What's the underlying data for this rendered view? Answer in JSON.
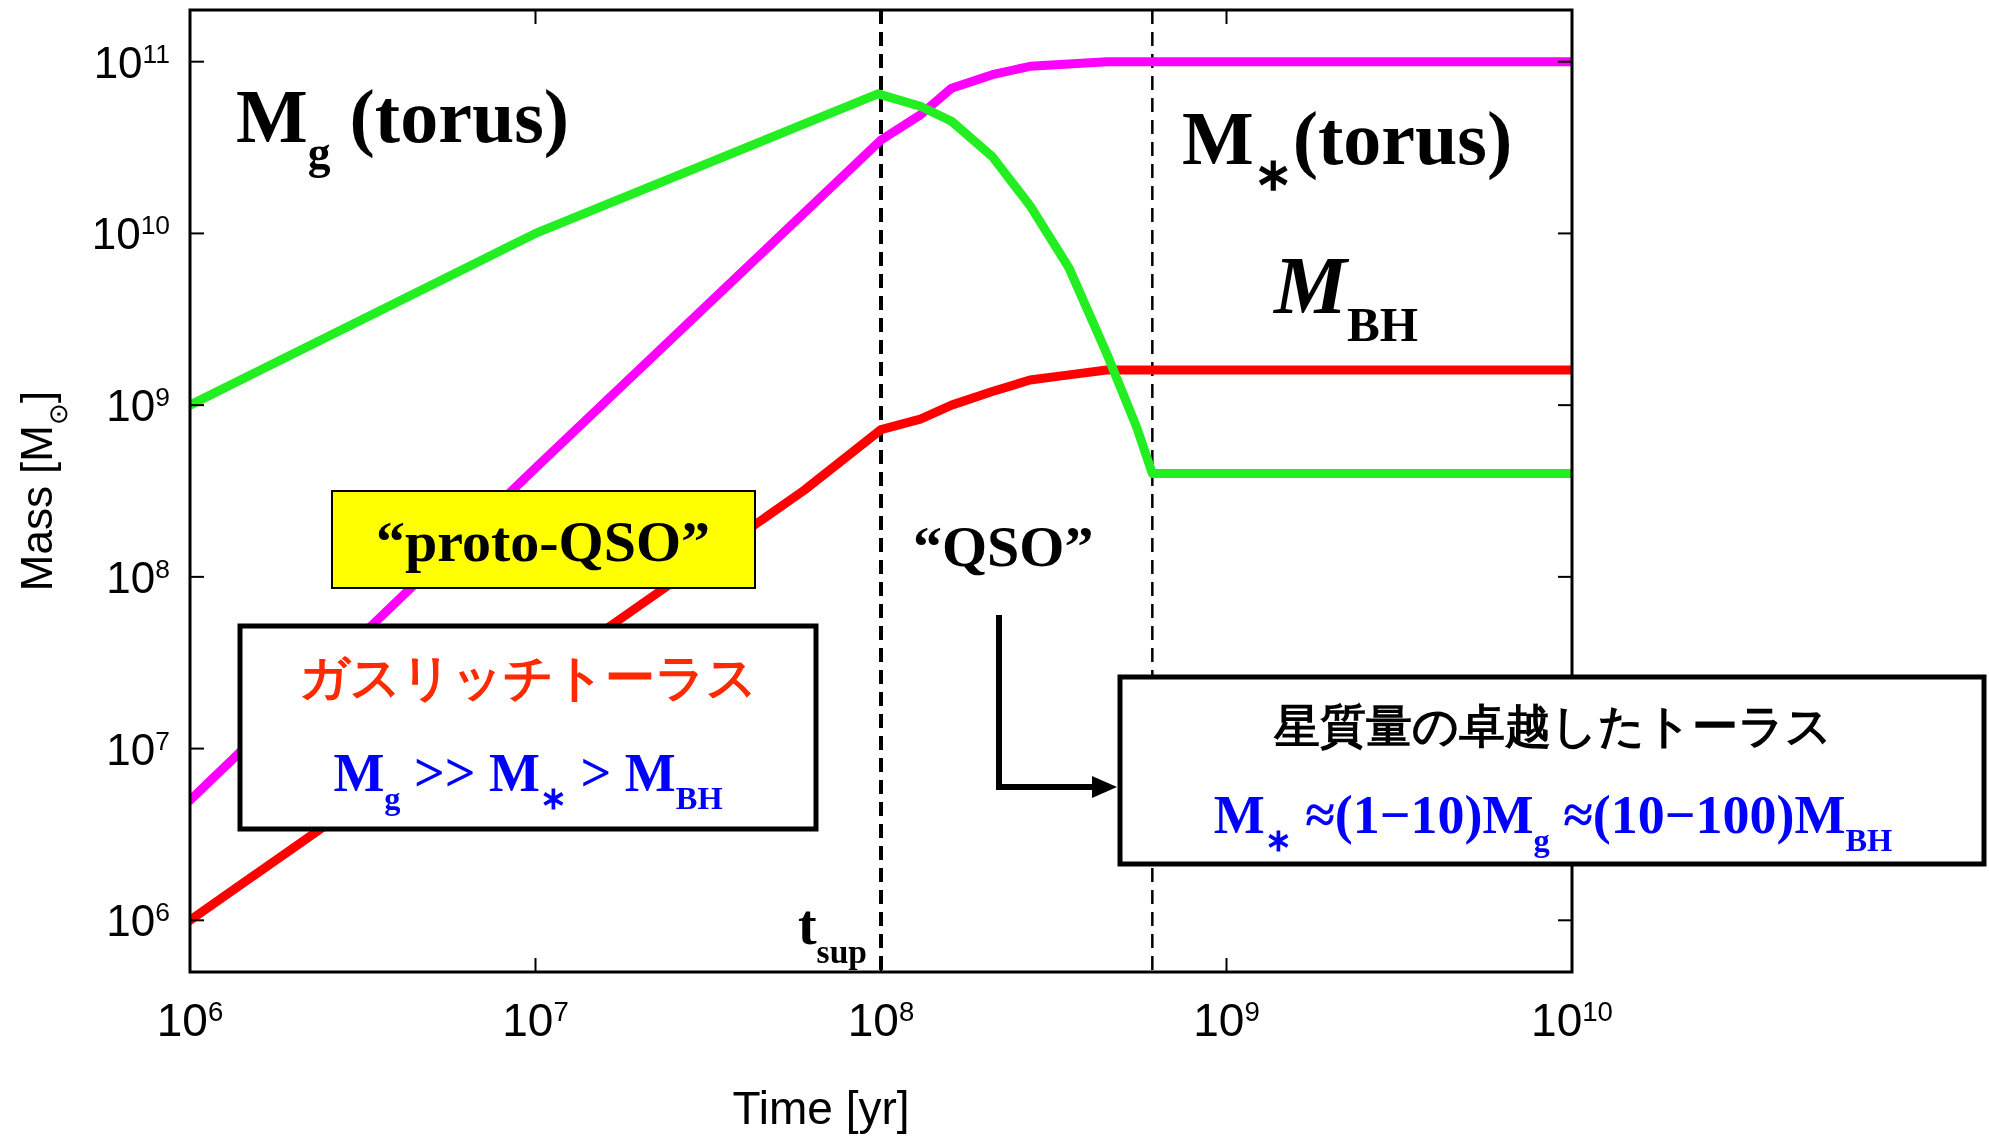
{
  "chart_data": {
    "type": "line",
    "xlabel": "Time [yr]",
    "ylabel": "Mass [M$_{⊙}$]",
    "log": "xy",
    "grid": false,
    "marker": "none",
    "line_style": "solid",
    "xlim": [
      1000000,
      10000000000
    ],
    "ylim": [
      500000,
      200000000000
    ],
    "xticks": [
      {
        "value": 1000000,
        "label": "10$^{6}$"
      },
      {
        "value": 10000000,
        "label": "10$^{7}$"
      },
      {
        "value": 100000000,
        "label": "10$^{8}$"
      },
      {
        "value": 1000000000,
        "label": "10$^{9}$"
      },
      {
        "value": 10000000000,
        "label": "10$^{10}$"
      }
    ],
    "yticks": [
      {
        "value": 1000000,
        "label": "10$^{6}$"
      },
      {
        "value": 10000000,
        "label": "10$^{7}$"
      },
      {
        "value": 100000000,
        "label": "10$^{8}$"
      },
      {
        "value": 1000000000,
        "label": "10$^{9}$"
      },
      {
        "value": 10000000000,
        "label": "10$^{10}$"
      },
      {
        "value": 100000000000,
        "label": "10$^{11}$"
      }
    ],
    "series": [
      {
        "color": "#ff00ff",
        "x": [
          1000000,
          10000000,
          100000000,
          130000000,
          160000000,
          210000000,
          270000000,
          350000000,
          450000000,
          10000000000
        ],
        "values": [
          5000000,
          430000000,
          35000000000,
          49000000000,
          70000000000,
          84000000000,
          94000000000,
          97000000000,
          100000000000,
          100000000000
        ]
      },
      {
        "color": "#ff0000",
        "x": [
          1000000,
          60000000,
          100000000,
          130000000,
          160000000,
          210000000,
          270000000,
          350000000,
          450000000,
          10000000000
        ],
        "values": [
          1000000,
          320000000,
          720000000,
          830000000,
          1000000000,
          1200000000,
          1400000000,
          1500000000,
          1600000000,
          1600000000
        ]
      },
      {
        "color": "#22ee22",
        "x": [
          1000000,
          10000000,
          98000000,
          130000000,
          160000000,
          210000000,
          270000000,
          350000000,
          450000000,
          550000000,
          610000000,
          10000000000
        ],
        "values": [
          1000000000,
          10000000000,
          65000000000,
          55000000000,
          45000000000,
          28000000000,
          14500000000,
          6300000000,
          2000000000,
          740000000,
          400000000,
          400000000
        ]
      }
    ],
    "ref_lines": [
      {
        "axis": "x",
        "value": 100000000,
        "label": "t$_{sup}$",
        "line_style": "dashed",
        "color": "#000000"
      },
      {
        "axis": "x",
        "value": 610000000,
        "line_style": "dashed",
        "color": "#000000"
      }
    ],
    "annotations": [
      "M$_{g}$ (torus)",
      "M$_{∗}$(torus)",
      "M$_{BH}$",
      "“proto-QSO”",
      "“QSO”",
      "ガスリッチトーラス",
      "M$_{g}$ >> M$_{∗}$ > M$_{BH}$",
      "星質量の卓越したトーラス",
      "M$_{∗}$ ≈(1−10)M$_{g}$ ≈(10−100)M$_{BH}$"
    ]
  }
}
